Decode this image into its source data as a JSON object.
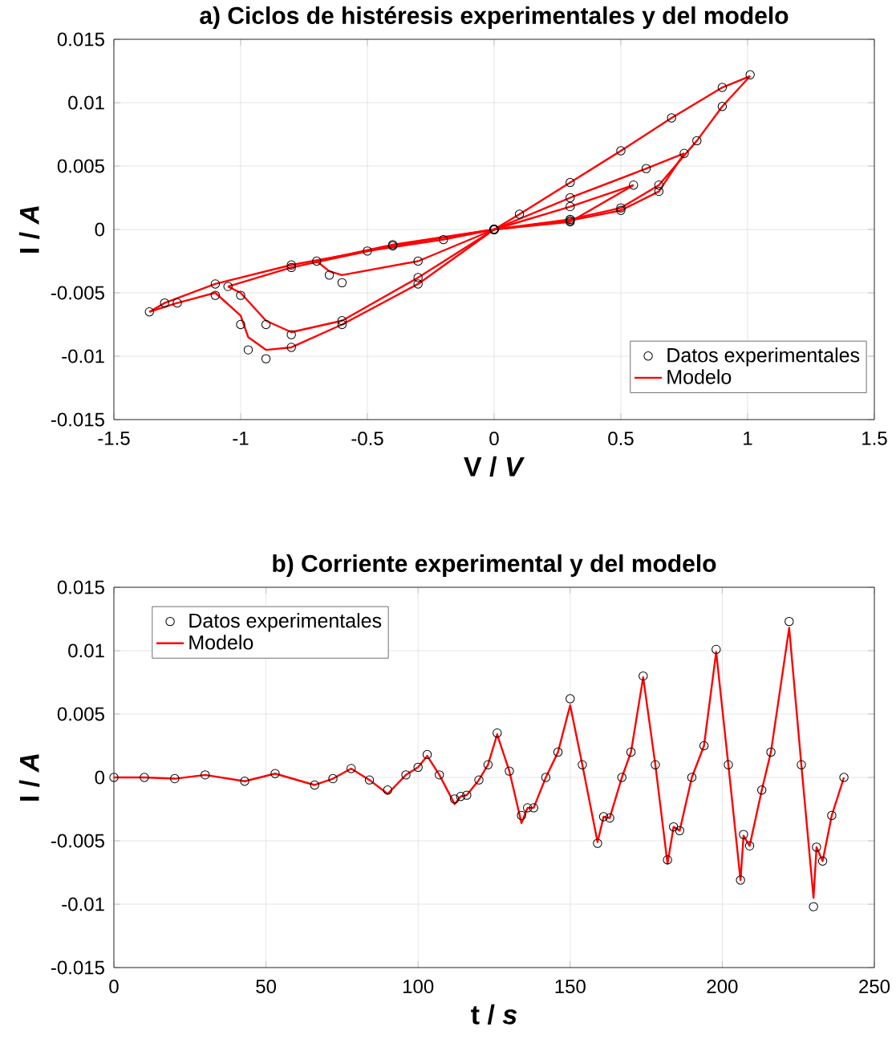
{
  "chart_data": [
    {
      "type": "line",
      "title": "a) Ciclos de histéresis experimentales y del modelo",
      "xlabel": "V /  *V*",
      "ylabel": "I /  *A*",
      "xlim": [
        -1.5,
        1.5
      ],
      "ylim": [
        -0.015,
        0.015
      ],
      "xticks": [
        -1.5,
        -1,
        -0.5,
        0,
        0.5,
        1,
        1.5
      ],
      "yticks": [
        -0.015,
        -0.01,
        -0.005,
        0,
        0.005,
        0.01,
        0.015
      ],
      "grid": true,
      "legend": "bottom right",
      "series": [
        {
          "name": "Datos experimentales",
          "type": "scatter",
          "marker": "circle",
          "color": "#000000",
          "x": [
            0,
            0.3,
            0.55,
            0.3,
            0,
            -0.4,
            -0.7,
            -0.65,
            -0.6,
            -0.3,
            0,
            0,
            0.3,
            0.5,
            0.65,
            0.75,
            0.6,
            0.3,
            0,
            -0.4,
            -0.8,
            -1.05,
            -1.0,
            -0.9,
            -0.8,
            -0.6,
            -0.3,
            0,
            0,
            0.3,
            0.5,
            0.65,
            0.8,
            0.9,
            1.01,
            0.9,
            0.7,
            0.5,
            0.3,
            0.1,
            0,
            -0.2,
            -0.5,
            -0.8,
            -1.1,
            -1.3,
            -1.36,
            -1.25,
            -1.1,
            -1.0,
            -0.97,
            -0.9,
            -0.8,
            -0.6,
            -0.3,
            0
          ],
          "values": [
            0,
            0.0006,
            0.0035,
            0.0018,
            0,
            -0.0012,
            -0.0025,
            -0.0036,
            -0.0042,
            -0.0025,
            0,
            0,
            0.0007,
            0.0015,
            0.003,
            0.006,
            0.0048,
            0.0025,
            0,
            -0.0013,
            -0.003,
            -0.0045,
            -0.0052,
            -0.0075,
            -0.0083,
            -0.0072,
            -0.0038,
            0,
            0,
            0.0008,
            0.0017,
            0.0035,
            0.007,
            0.0097,
            0.0122,
            0.0112,
            0.0088,
            0.0062,
            0.0037,
            0.0012,
            0,
            -0.0008,
            -0.0017,
            -0.0028,
            -0.0043,
            -0.0058,
            -0.0065,
            -0.0058,
            -0.0052,
            -0.0075,
            -0.0095,
            -0.0102,
            -0.0093,
            -0.0075,
            -0.0043,
            0
          ]
        },
        {
          "name": "Modelo",
          "color": "#ff0000",
          "x": [
            0,
            0.3,
            0.55
          ],
          "values": [
            0,
            0.0006,
            0.0035
          ]
        },
        {
          "color": "#ff0000",
          "x": [
            -0.7,
            -0.4,
            0,
            0.3,
            0.55
          ],
          "values": [
            -0.0025,
            -0.0012,
            0,
            0.0018,
            0.0035
          ]
        },
        {
          "color": "#ff0000",
          "x": [
            -0.7,
            -0.65,
            -0.6,
            -0.3,
            0,
            0.3,
            0.5,
            0.65,
            0.75
          ],
          "values": [
            -0.0025,
            -0.0033,
            -0.0036,
            -0.0025,
            0,
            0.0007,
            0.0015,
            0.003,
            0.006
          ]
        },
        {
          "color": "#ff0000",
          "x": [
            -1.05,
            -0.8,
            -0.4,
            0,
            0.3,
            0.6,
            0.75
          ],
          "values": [
            -0.0045,
            -0.003,
            -0.0013,
            0,
            0.0025,
            0.0048,
            0.006
          ]
        },
        {
          "color": "#ff0000",
          "x": [
            -1.05,
            -1.0,
            -0.9,
            -0.8,
            -0.6,
            -0.3,
            0,
            0.3,
            0.5,
            0.65,
            0.8,
            0.9,
            1.01
          ],
          "values": [
            -0.0045,
            -0.005,
            -0.0072,
            -0.0081,
            -0.0072,
            -0.0038,
            0,
            0.0008,
            0.0017,
            0.0035,
            0.007,
            0.0097,
            0.0121
          ]
        },
        {
          "color": "#ff0000",
          "x": [
            -1.36,
            -1.3,
            -1.1,
            -0.8,
            -0.5,
            -0.2,
            0,
            0.1,
            0.3,
            0.5,
            0.7,
            0.9,
            1.01
          ],
          "values": [
            -0.0065,
            -0.0058,
            -0.0043,
            -0.0028,
            -0.0017,
            -0.0008,
            0,
            0.0012,
            0.0037,
            0.0062,
            0.0088,
            0.0112,
            0.0121
          ]
        },
        {
          "color": "#ff0000",
          "x": [
            -1.36,
            -1.25,
            -1.1,
            -1.0,
            -0.97,
            -0.9,
            -0.8,
            -0.6,
            -0.3,
            0
          ],
          "values": [
            -0.0065,
            -0.0058,
            -0.005,
            -0.0068,
            -0.0085,
            -0.0095,
            -0.0093,
            -0.0075,
            -0.0043,
            0
          ]
        }
      ]
    },
    {
      "type": "line",
      "title": "b) Corriente experimental y del modelo",
      "xlabel": "t /  *s*",
      "ylabel": "I /  *A*",
      "xlim": [
        0,
        250
      ],
      "ylim": [
        -0.015,
        0.015
      ],
      "xticks": [
        0,
        50,
        100,
        150,
        200,
        250
      ],
      "yticks": [
        -0.015,
        -0.01,
        -0.005,
        0,
        0.005,
        0.01,
        0.015
      ],
      "grid": true,
      "legend": "top left",
      "series": [
        {
          "name": "Datos experimentales",
          "type": "scatter",
          "marker": "circle",
          "color": "#000000",
          "x": [
            0,
            10,
            20,
            30,
            43,
            53,
            66,
            72,
            78,
            84,
            90,
            96,
            100,
            103,
            107,
            112,
            114,
            116,
            120,
            123,
            126,
            130,
            134,
            136,
            138,
            142,
            146,
            150,
            154,
            159,
            161,
            163,
            167,
            170,
            174,
            178,
            182,
            184,
            186,
            190,
            194,
            198,
            202,
            206,
            207,
            209,
            213,
            216,
            222,
            226,
            230,
            231,
            233,
            236,
            240
          ],
          "values": [
            0,
            0,
            -0.0001,
            0.0002,
            -0.0003,
            0.0003,
            -0.0006,
            -0.0001,
            0.0007,
            -0.0002,
            -0.001,
            0.0002,
            0.0008,
            0.0018,
            0.0002,
            -0.0017,
            -0.0015,
            -0.0014,
            -0.0002,
            0.001,
            0.0035,
            0.0005,
            -0.003,
            -0.0024,
            -0.0024,
            0,
            0.002,
            0.0062,
            0.001,
            -0.0052,
            -0.0031,
            -0.0032,
            0,
            0.002,
            0.008,
            0.001,
            -0.0065,
            -0.0039,
            -0.0042,
            0,
            0.0025,
            0.0101,
            0.001,
            -0.0081,
            -0.0045,
            -0.0054,
            -0.001,
            0.002,
            0.0123,
            0.001,
            -0.0102,
            -0.0055,
            -0.0066,
            -0.003,
            0
          ]
        },
        {
          "name": "Modelo",
          "color": "#ff0000",
          "x": [
            0,
            10,
            20,
            30,
            43,
            53,
            66,
            72,
            78,
            84,
            90,
            96,
            100,
            103,
            107,
            112,
            114,
            116,
            120,
            123,
            126,
            130,
            134,
            136,
            138,
            142,
            146,
            150,
            154,
            159,
            161,
            163,
            167,
            170,
            174,
            178,
            182,
            184,
            186,
            190,
            194,
            198,
            202,
            206,
            207,
            209,
            213,
            216,
            222,
            226,
            230,
            231,
            233,
            236,
            240
          ],
          "values": [
            0,
            0,
            -0.0001,
            0.0002,
            -0.0003,
            0.0003,
            -0.0006,
            -0.0001,
            0.0007,
            -0.0002,
            -0.0013,
            0.0002,
            0.0008,
            0.0017,
            0.0002,
            -0.0021,
            -0.0015,
            -0.0014,
            -0.0002,
            0.001,
            0.0034,
            0.0005,
            -0.0036,
            -0.0024,
            -0.0024,
            0,
            0.002,
            0.0057,
            0.001,
            -0.0051,
            -0.0031,
            -0.0032,
            0,
            0.002,
            0.0079,
            0.001,
            -0.0068,
            -0.0039,
            -0.0042,
            0,
            0.0025,
            0.0099,
            0.001,
            -0.0081,
            -0.0046,
            -0.0054,
            -0.001,
            0.002,
            0.0118,
            0.001,
            -0.0095,
            -0.0055,
            -0.0066,
            -0.003,
            0
          ]
        }
      ]
    }
  ]
}
